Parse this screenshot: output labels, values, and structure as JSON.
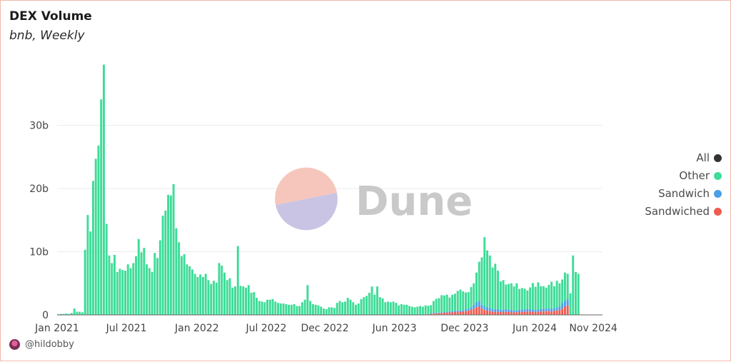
{
  "header": {
    "title": "DEX Volume",
    "subtitle": "bnb, Weekly"
  },
  "watermark": {
    "text": "Dune"
  },
  "footer": {
    "handle": "@hildobby",
    "avatar_icon": "user-avatar-icon"
  },
  "legend": {
    "items": [
      {
        "label": "All",
        "color": "#333333"
      },
      {
        "label": "Other",
        "color": "#3ddc97"
      },
      {
        "label": "Sandwich",
        "color": "#4c9ee8"
      },
      {
        "label": "Sandwiched",
        "color": "#f05a4f"
      }
    ]
  },
  "colors": {
    "other": "#3ddc97",
    "sandwich": "#4c9ee8",
    "sandwiched": "#f05a4f",
    "grid": "#ececec",
    "axis": "#cccccc",
    "watermark_top": "#f6c6bc",
    "watermark_bottom": "#c9c4e3",
    "watermark_text": "#c9c9c9"
  },
  "chart_data": {
    "type": "bar",
    "stacked": true,
    "interval": "weekly",
    "x_range": [
      "2021-01-01",
      "2024-11-25"
    ],
    "x_ticks": [
      {
        "date": "2021-01-01",
        "label": "Jan 2021"
      },
      {
        "date": "2021-07-01",
        "label": "Jul 2021"
      },
      {
        "date": "2022-01-01",
        "label": "Jan 2022"
      },
      {
        "date": "2022-07-01",
        "label": "Jul 2022"
      },
      {
        "date": "2022-12-01",
        "label": "Dec 2022"
      },
      {
        "date": "2023-06-01",
        "label": "Jun 2023"
      },
      {
        "date": "2023-12-01",
        "label": "Dec 2023"
      },
      {
        "date": "2024-06-01",
        "label": "Jun 2024"
      },
      {
        "date": "2024-11-01",
        "label": "Nov 2024"
      }
    ],
    "y_ticks": [
      {
        "value": 0,
        "label": "0"
      },
      {
        "value": 10,
        "label": "10b"
      },
      {
        "value": 20,
        "label": "20b"
      },
      {
        "value": 30,
        "label": "30b"
      }
    ],
    "ylim": [
      0,
      40
    ],
    "y_unit": "billion USD",
    "grid": true,
    "legend_position": "right",
    "start_week": "2021-01-04",
    "series": [
      {
        "name": "Other",
        "values": [
          0.1,
          0.15,
          0.15,
          0.2,
          0.15,
          0.3,
          1.0,
          0.5,
          0.5,
          0.4,
          10.3,
          15.8,
          13.2,
          21.2,
          24.7,
          26.8,
          34.1,
          39.6,
          14.4,
          9.4,
          8.2,
          9.5,
          6.8,
          7.3,
          7.1,
          7.0,
          8.0,
          7.4,
          8.2,
          9.3,
          12.0,
          9.9,
          10.6,
          8.0,
          7.4,
          6.8,
          9.8,
          9.0,
          11.8,
          15.7,
          16.5,
          19.0,
          18.9,
          20.7,
          13.7,
          11.5,
          9.3,
          9.6,
          8.0,
          7.7,
          7.2,
          6.5,
          6.0,
          6.4,
          6.0,
          6.5,
          5.5,
          4.9,
          5.4,
          5.1,
          8.2,
          7.8,
          6.7,
          5.5,
          5.8,
          4.3,
          4.5,
          10.9,
          4.6,
          4.5,
          4.3,
          4.7,
          3.5,
          3.6,
          2.7,
          2.2,
          2.1,
          2.0,
          2.4,
          2.4,
          2.5,
          2.1,
          1.9,
          1.8,
          1.8,
          1.7,
          1.6,
          1.6,
          1.7,
          1.4,
          1.4,
          2.0,
          2.4,
          4.7,
          2.2,
          1.7,
          1.6,
          1.5,
          1.3,
          1.0,
          0.9,
          1.2,
          1.2,
          1.1,
          1.9,
          2.2,
          2.0,
          2.1,
          2.7,
          2.4,
          2.0,
          1.6,
          1.8,
          2.5,
          2.8,
          3.0,
          3.5,
          4.5,
          3.2,
          4.5,
          2.8,
          2.6,
          2.0,
          2.1,
          2.0,
          2.1,
          1.9,
          1.5,
          1.7,
          1.6,
          1.6,
          1.4,
          1.3,
          1.2,
          1.3,
          1.4,
          1.3,
          1.5,
          1.3,
          1.3,
          1.9,
          2.2,
          2.3,
          2.7,
          2.6,
          2.7,
          2.2,
          2.6,
          2.7,
          3.1,
          3.3,
          3.0,
          2.7,
          2.6,
          3.2,
          3.4,
          4.7,
          6.2,
          7.5,
          11.0,
          9.0,
          8.3,
          6.6,
          7.2,
          6.1,
          4.5,
          4.7,
          3.9,
          4.1,
          4.2,
          3.8,
          4.3,
          3.3,
          3.4,
          3.3,
          2.9,
          3.5,
          4.2,
          3.7,
          4.3,
          3.6,
          3.6,
          3.3,
          3.7,
          4.3,
          3.5,
          4.2,
          3.7,
          3.7,
          4.5,
          4.0,
          3.4,
          9.4,
          6.8,
          6.5
        ]
      },
      {
        "name": "Sandwich",
        "values": [
          0,
          0,
          0,
          0,
          0,
          0,
          0,
          0,
          0,
          0,
          0,
          0,
          0,
          0,
          0,
          0,
          0,
          0,
          0,
          0,
          0,
          0,
          0,
          0,
          0,
          0,
          0,
          0,
          0,
          0,
          0,
          0,
          0,
          0,
          0,
          0,
          0,
          0,
          0,
          0,
          0,
          0,
          0,
          0,
          0,
          0,
          0,
          0,
          0,
          0,
          0,
          0,
          0,
          0,
          0,
          0,
          0,
          0,
          0,
          0,
          0,
          0,
          0,
          0,
          0,
          0,
          0,
          0,
          0,
          0,
          0,
          0,
          0,
          0,
          0,
          0,
          0,
          0,
          0,
          0,
          0,
          0,
          0,
          0,
          0,
          0,
          0,
          0,
          0,
          0,
          0,
          0,
          0,
          0,
          0,
          0,
          0,
          0,
          0,
          0,
          0,
          0,
          0,
          0,
          0,
          0,
          0,
          0,
          0,
          0,
          0,
          0,
          0,
          0,
          0,
          0,
          0,
          0,
          0,
          0,
          0,
          0,
          0,
          0,
          0,
          0,
          0,
          0,
          0,
          0,
          0,
          0,
          0,
          0,
          0,
          0,
          0,
          0,
          0.05,
          0.08,
          0.1,
          0.1,
          0.1,
          0.12,
          0.12,
          0.15,
          0.15,
          0.18,
          0.2,
          0.2,
          0.2,
          0.22,
          0.25,
          0.3,
          0.4,
          0.6,
          0.8,
          0.9,
          0.6,
          0.5,
          0.5,
          0.5,
          0.4,
          0.4,
          0.4,
          0.35,
          0.35,
          0.4,
          0.35,
          0.35,
          0.3,
          0.3,
          0.35,
          0.35,
          0.35,
          0.4,
          0.35,
          0.35,
          0.3,
          0.35,
          0.4,
          0.4,
          0.4,
          0.45,
          0.4,
          0.45,
          0.5,
          0.5,
          0.9,
          0.9,
          1.0
        ]
      },
      {
        "name": "Sandwiched",
        "values": [
          0,
          0,
          0,
          0,
          0,
          0,
          0,
          0,
          0,
          0,
          0,
          0,
          0,
          0,
          0,
          0,
          0,
          0,
          0,
          0,
          0,
          0,
          0,
          0,
          0,
          0,
          0,
          0,
          0,
          0,
          0,
          0,
          0,
          0,
          0,
          0,
          0,
          0,
          0,
          0,
          0,
          0,
          0,
          0,
          0,
          0,
          0,
          0,
          0,
          0,
          0,
          0,
          0,
          0,
          0,
          0,
          0,
          0,
          0,
          0,
          0,
          0,
          0,
          0,
          0,
          0,
          0,
          0,
          0,
          0,
          0,
          0,
          0,
          0,
          0,
          0,
          0,
          0,
          0,
          0,
          0,
          0,
          0,
          0,
          0,
          0,
          0,
          0,
          0,
          0,
          0,
          0,
          0,
          0,
          0,
          0,
          0,
          0,
          0,
          0,
          0,
          0,
          0,
          0,
          0,
          0,
          0,
          0,
          0,
          0,
          0,
          0,
          0,
          0,
          0,
          0,
          0,
          0,
          0,
          0,
          0,
          0,
          0,
          0,
          0,
          0,
          0,
          0,
          0,
          0,
          0,
          0,
          0,
          0,
          0,
          0,
          0,
          0,
          0.1,
          0.15,
          0.2,
          0.25,
          0.25,
          0.3,
          0.35,
          0.35,
          0.4,
          0.4,
          0.45,
          0.5,
          0.5,
          0.5,
          0.6,
          0.7,
          0.8,
          1.0,
          1.2,
          1.3,
          1.0,
          0.8,
          0.7,
          0.6,
          0.5,
          0.5,
          0.5,
          0.45,
          0.45,
          0.5,
          0.45,
          0.45,
          0.4,
          0.4,
          0.45,
          0.5,
          0.5,
          0.55,
          0.5,
          0.5,
          0.45,
          0.5,
          0.55,
          0.55,
          0.6,
          0.6,
          0.55,
          0.6,
          0.7,
          0.8,
          1.0,
          1.3,
          1.5
        ]
      }
    ]
  }
}
